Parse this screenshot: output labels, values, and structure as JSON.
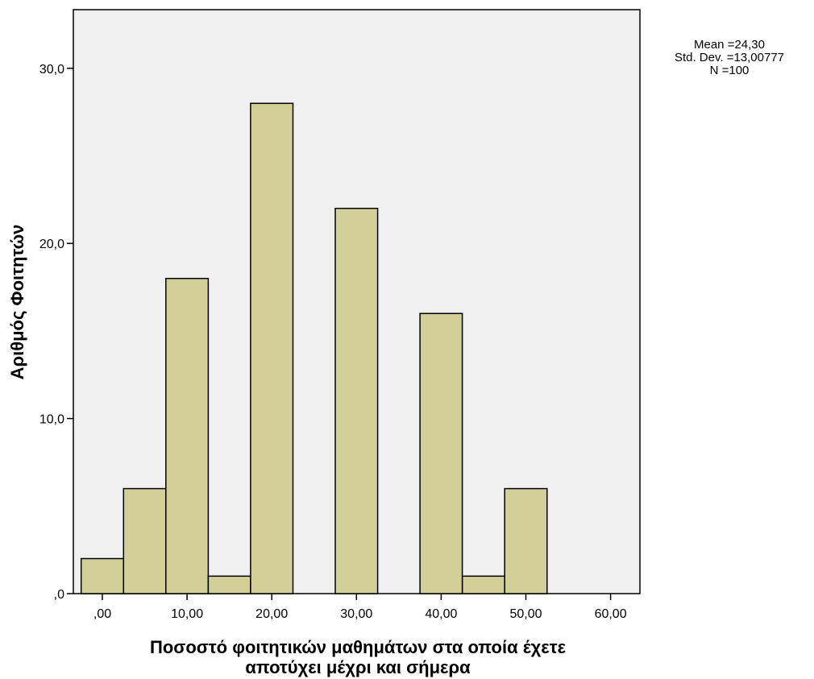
{
  "chart_data": {
    "type": "bar",
    "subtype": "histogram",
    "x_ticks": [
      0,
      10,
      20,
      30,
      40,
      50,
      60
    ],
    "x_tick_labels": [
      ",00",
      "10,00",
      "20,00",
      "30,00",
      "40,00",
      "50,00",
      "60,00"
    ],
    "y_ticks": [
      0,
      10,
      20,
      30
    ],
    "y_tick_labels": [
      ",0",
      "10,0",
      "20,0",
      "30,0"
    ],
    "xlim": [
      -2.5,
      65
    ],
    "ylim": [
      0,
      33.4
    ],
    "bins": [
      {
        "start": -2.5,
        "end": 2.5,
        "count": 2
      },
      {
        "start": 2.5,
        "end": 7.5,
        "count": 6
      },
      {
        "start": 7.5,
        "end": 12.5,
        "count": 18
      },
      {
        "start": 12.5,
        "end": 17.5,
        "count": 1
      },
      {
        "start": 17.5,
        "end": 22.5,
        "count": 28
      },
      {
        "start": 22.5,
        "end": 27.5,
        "count": 0
      },
      {
        "start": 27.5,
        "end": 32.5,
        "count": 22
      },
      {
        "start": 32.5,
        "end": 37.5,
        "count": 0
      },
      {
        "start": 37.5,
        "end": 42.5,
        "count": 16
      },
      {
        "start": 42.5,
        "end": 47.5,
        "count": 1
      },
      {
        "start": 47.5,
        "end": 52.5,
        "count": 6
      }
    ],
    "xlabel_lines": [
      "Ποσοστό φοιτητικών μαθημάτων στα οποία έχετε",
      "αποτύχει μέχρι και σήμερα"
    ],
    "ylabel": "Αριθμός Φοιτητών",
    "stats": {
      "mean": "Mean =24,30",
      "std": "Std. Dev. =13,00777",
      "n": "N =100"
    },
    "legend_position": "top-right",
    "grid": false,
    "colors": {
      "bar_fill": "#d3cf98",
      "plot_bg": "#f0f0f0",
      "stroke": "#000000"
    }
  }
}
